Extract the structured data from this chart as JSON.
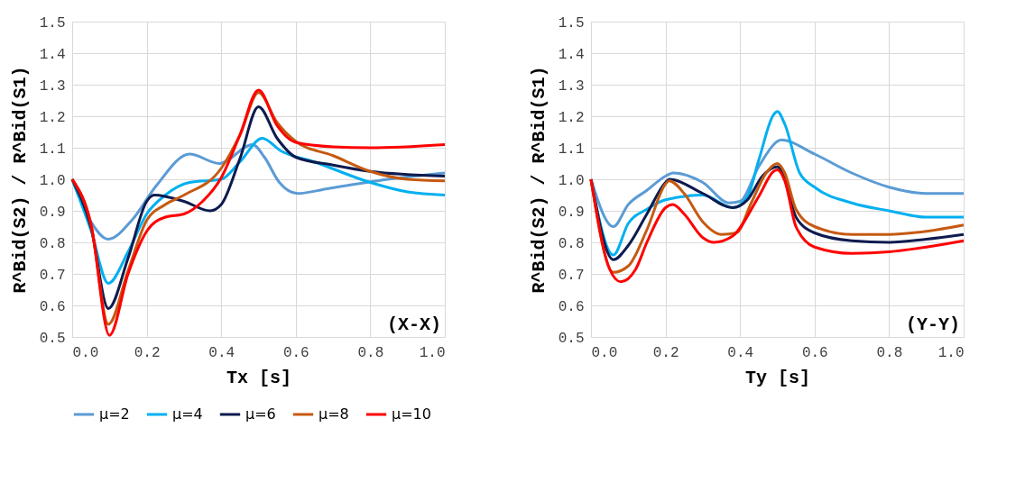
{
  "chart_data": [
    {
      "type": "line",
      "xlabel": "Tx [s]",
      "ylabel": "R^Bid(S2) / R^Bid(S1)",
      "annotations": [
        "(X-X)"
      ],
      "grid": true,
      "legend": "bottom",
      "xlim": [
        0,
        1
      ],
      "ylim": [
        0.5,
        1.5
      ],
      "xticks": [
        {
          "value": 0,
          "label": "0.0"
        },
        {
          "value": 0.2,
          "label": "0.2"
        },
        {
          "value": 0.4,
          "label": "0.4"
        },
        {
          "value": 0.6,
          "label": "0.6"
        },
        {
          "value": 0.8,
          "label": "0.8"
        },
        {
          "value": 1,
          "label": "1.0"
        }
      ],
      "yticks": [
        {
          "value": 0.5,
          "label": "0.5"
        },
        {
          "value": 0.6,
          "label": "0.6"
        },
        {
          "value": 0.7,
          "label": "0.7"
        },
        {
          "value": 0.8,
          "label": "0.8"
        },
        {
          "value": 0.9,
          "label": "0.9"
        },
        {
          "value": 1,
          "label": "1.0"
        },
        {
          "value": 1.1,
          "label": "1.1"
        },
        {
          "value": 1.2,
          "label": "1.2"
        },
        {
          "value": 1.3,
          "label": "1.3"
        },
        {
          "value": 1.4,
          "label": "1.4"
        },
        {
          "value": 1.5,
          "label": "1.5"
        }
      ],
      "series": [
        {
          "name": "μ=2",
          "color": "#5b9bd5",
          "x": [
            0,
            0.048,
            0.097,
            0.16,
            0.226,
            0.315,
            0.395,
            0.484,
            0.516,
            0.556,
            0.605,
            0.685,
            0.847,
            1.0
          ],
          "values": [
            1.0,
            0.87,
            0.81,
            0.87,
            0.98,
            1.08,
            1.05,
            1.11,
            1.07,
            0.99,
            0.955,
            0.97,
            1.0,
            1.02
          ]
        },
        {
          "name": "μ=4",
          "color": "#00b0f0",
          "x": [
            0,
            0.05,
            0.097,
            0.15,
            0.2,
            0.25,
            0.315,
            0.4,
            0.45,
            0.51,
            0.56,
            0.65,
            0.8,
            0.9,
            1.0
          ],
          "values": [
            1.0,
            0.84,
            0.67,
            0.77,
            0.89,
            0.95,
            0.99,
            1.0,
            1.055,
            1.13,
            1.09,
            1.055,
            0.99,
            0.96,
            0.95
          ]
        },
        {
          "name": "μ=6",
          "color": "#0d1b4f",
          "x": [
            0,
            0.05,
            0.097,
            0.15,
            0.2,
            0.22,
            0.3,
            0.37,
            0.4,
            0.45,
            0.5,
            0.55,
            0.6,
            0.7,
            0.8,
            1.0
          ],
          "values": [
            1.0,
            0.85,
            0.59,
            0.75,
            0.93,
            0.95,
            0.93,
            0.9,
            0.92,
            1.065,
            1.23,
            1.13,
            1.07,
            1.045,
            1.025,
            1.01
          ]
        },
        {
          "name": "μ=8",
          "color": "#c55a11",
          "x": [
            0,
            0.05,
            0.097,
            0.15,
            0.2,
            0.25,
            0.3,
            0.4,
            0.45,
            0.5,
            0.55,
            0.6,
            0.7,
            0.8,
            0.9,
            1.0
          ],
          "values": [
            1.0,
            0.86,
            0.54,
            0.71,
            0.87,
            0.92,
            0.95,
            1.035,
            1.14,
            1.275,
            1.18,
            1.12,
            1.075,
            1.025,
            1.0,
            0.995
          ]
        },
        {
          "name": "μ=10",
          "color": "#ff0000",
          "x": [
            0,
            0.05,
            0.1,
            0.15,
            0.2,
            0.25,
            0.3,
            0.35,
            0.4,
            0.45,
            0.5,
            0.55,
            0.6,
            0.7,
            0.8,
            1.0
          ],
          "values": [
            1.0,
            0.86,
            0.505,
            0.7,
            0.835,
            0.88,
            0.89,
            0.93,
            1.005,
            1.14,
            1.283,
            1.17,
            1.117,
            1.103,
            1.1,
            1.11
          ]
        }
      ]
    },
    {
      "type": "line",
      "xlabel": "Ty [s]",
      "ylabel": "R^Bid(S2) / R^Bid(S1)",
      "annotations": [
        "(Y-Y)"
      ],
      "grid": true,
      "legend": "bottom",
      "xlim": [
        0,
        1
      ],
      "ylim": [
        0.5,
        1.5
      ],
      "xticks": [
        {
          "value": 0,
          "label": "0.0"
        },
        {
          "value": 0.2,
          "label": "0.2"
        },
        {
          "value": 0.4,
          "label": "0.4"
        },
        {
          "value": 0.6,
          "label": "0.6"
        },
        {
          "value": 0.8,
          "label": "0.8"
        },
        {
          "value": 1,
          "label": "1.0"
        }
      ],
      "yticks": [
        {
          "value": 0.5,
          "label": "0.5"
        },
        {
          "value": 0.6,
          "label": "0.6"
        },
        {
          "value": 0.7,
          "label": "0.7"
        },
        {
          "value": 0.8,
          "label": "0.8"
        },
        {
          "value": 0.9,
          "label": "0.9"
        },
        {
          "value": 1,
          "label": "1.0"
        },
        {
          "value": 1.1,
          "label": "1.1"
        },
        {
          "value": 1.2,
          "label": "1.2"
        },
        {
          "value": 1.3,
          "label": "1.3"
        },
        {
          "value": 1.4,
          "label": "1.4"
        },
        {
          "value": 1.5,
          "label": "1.5"
        }
      ],
      "series": [
        {
          "name": "μ=2",
          "color": "#5b9bd5",
          "x": [
            0,
            0.06,
            0.1,
            0.15,
            0.2,
            0.22,
            0.3,
            0.37,
            0.4,
            0.45,
            0.5,
            0.51,
            0.6,
            0.7,
            0.8,
            0.9,
            1.0
          ],
          "values": [
            1.0,
            0.85,
            0.92,
            0.965,
            1.01,
            1.02,
            0.99,
            0.925,
            0.93,
            1.04,
            1.12,
            1.125,
            1.08,
            1.02,
            0.975,
            0.955,
            0.955
          ]
        },
        {
          "name": "μ=4",
          "color": "#00b0f0",
          "x": [
            0,
            0.06,
            0.1,
            0.15,
            0.2,
            0.3,
            0.38,
            0.42,
            0.45,
            0.49,
            0.5,
            0.52,
            0.56,
            0.6,
            0.7,
            0.8,
            0.9,
            1.0
          ],
          "values": [
            1.0,
            0.76,
            0.86,
            0.905,
            0.935,
            0.95,
            0.91,
            0.945,
            1.06,
            1.205,
            1.215,
            1.175,
            1.02,
            0.975,
            0.925,
            0.9,
            0.88,
            0.88
          ]
        },
        {
          "name": "μ=6",
          "color": "#0d1b4f",
          "x": [
            0,
            0.06,
            0.1,
            0.15,
            0.2,
            0.21,
            0.3,
            0.38,
            0.42,
            0.46,
            0.5,
            0.52,
            0.55,
            0.6,
            0.7,
            0.8,
            0.9,
            1.0
          ],
          "values": [
            1.0,
            0.745,
            0.79,
            0.89,
            0.99,
            1.0,
            0.955,
            0.91,
            0.935,
            1.01,
            1.04,
            1.0,
            0.88,
            0.83,
            0.805,
            0.8,
            0.81,
            0.825
          ]
        },
        {
          "name": "μ=8",
          "color": "#c55a11",
          "x": [
            0,
            0.06,
            0.1,
            0.15,
            0.2,
            0.21,
            0.25,
            0.3,
            0.35,
            0.39,
            0.43,
            0.47,
            0.5,
            0.52,
            0.55,
            0.6,
            0.7,
            0.8,
            0.9,
            1.0
          ],
          "values": [
            1.0,
            0.705,
            0.725,
            0.84,
            0.985,
            0.995,
            0.955,
            0.865,
            0.825,
            0.83,
            0.925,
            1.02,
            1.05,
            1.02,
            0.905,
            0.85,
            0.825,
            0.825,
            0.835,
            0.855
          ]
        },
        {
          "name": "μ=10",
          "color": "#ff0000",
          "x": [
            0,
            0.05,
            0.08,
            0.12,
            0.15,
            0.2,
            0.22,
            0.25,
            0.3,
            0.33,
            0.38,
            0.45,
            0.49,
            0.5,
            0.52,
            0.55,
            0.6,
            0.7,
            0.8,
            0.9,
            1.0
          ],
          "values": [
            1.0,
            0.715,
            0.675,
            0.715,
            0.8,
            0.91,
            0.92,
            0.89,
            0.815,
            0.8,
            0.82,
            0.945,
            1.025,
            1.03,
            0.995,
            0.85,
            0.785,
            0.765,
            0.77,
            0.785,
            0.805
          ]
        }
      ]
    }
  ]
}
